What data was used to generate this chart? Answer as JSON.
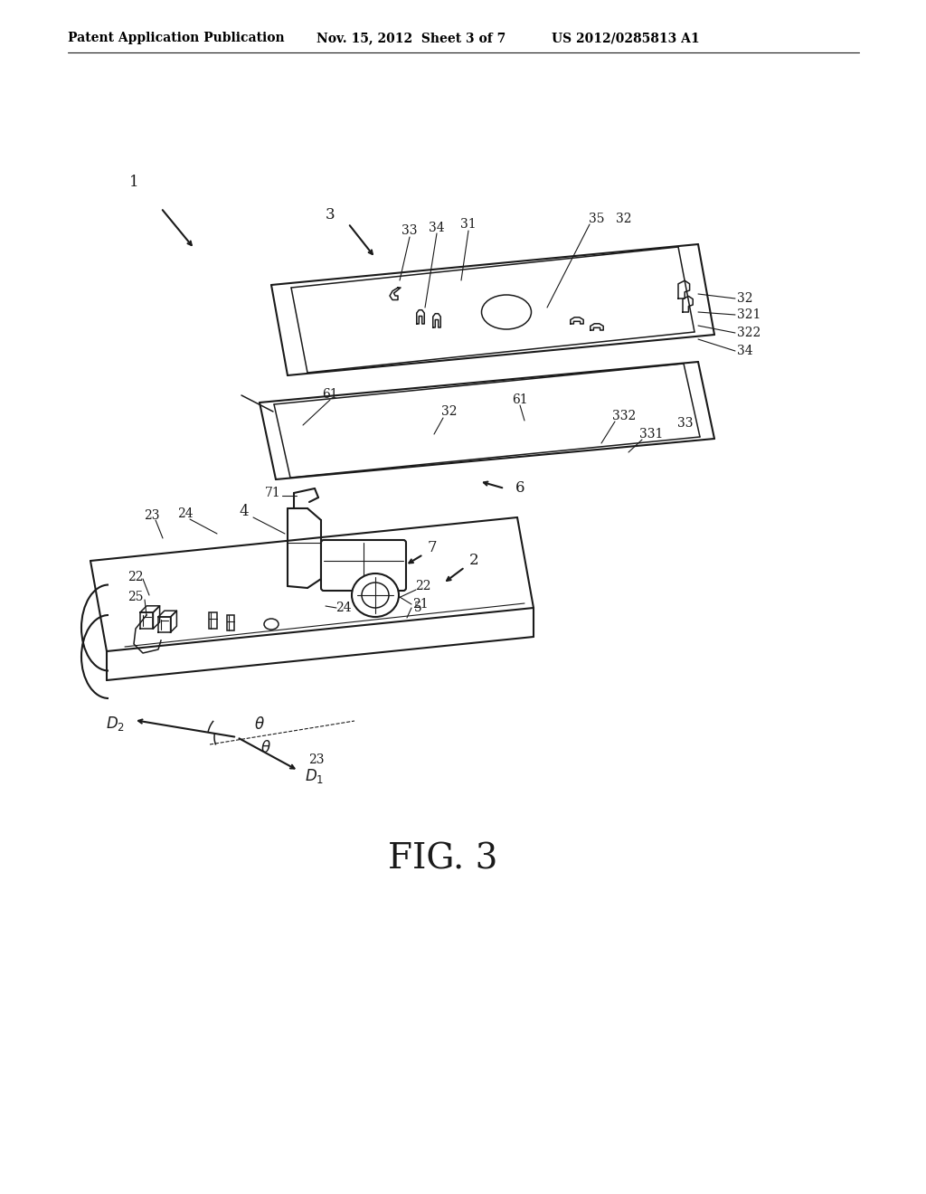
{
  "header_left": "Patent Application Publication",
  "header_mid": "Nov. 15, 2012  Sheet 3 of 7",
  "header_right": "US 2012/0285813 A1",
  "fig_label": "FIG. 3",
  "background": "#ffffff",
  "lc": "#1a1a1a",
  "tc": "#1a1a1a",
  "lw_main": 1.5,
  "lw_detail": 1.1,
  "lw_thin": 0.8,
  "fs_label": 12,
  "fs_small": 10,
  "fs_header": 10,
  "fs_fig": 28
}
